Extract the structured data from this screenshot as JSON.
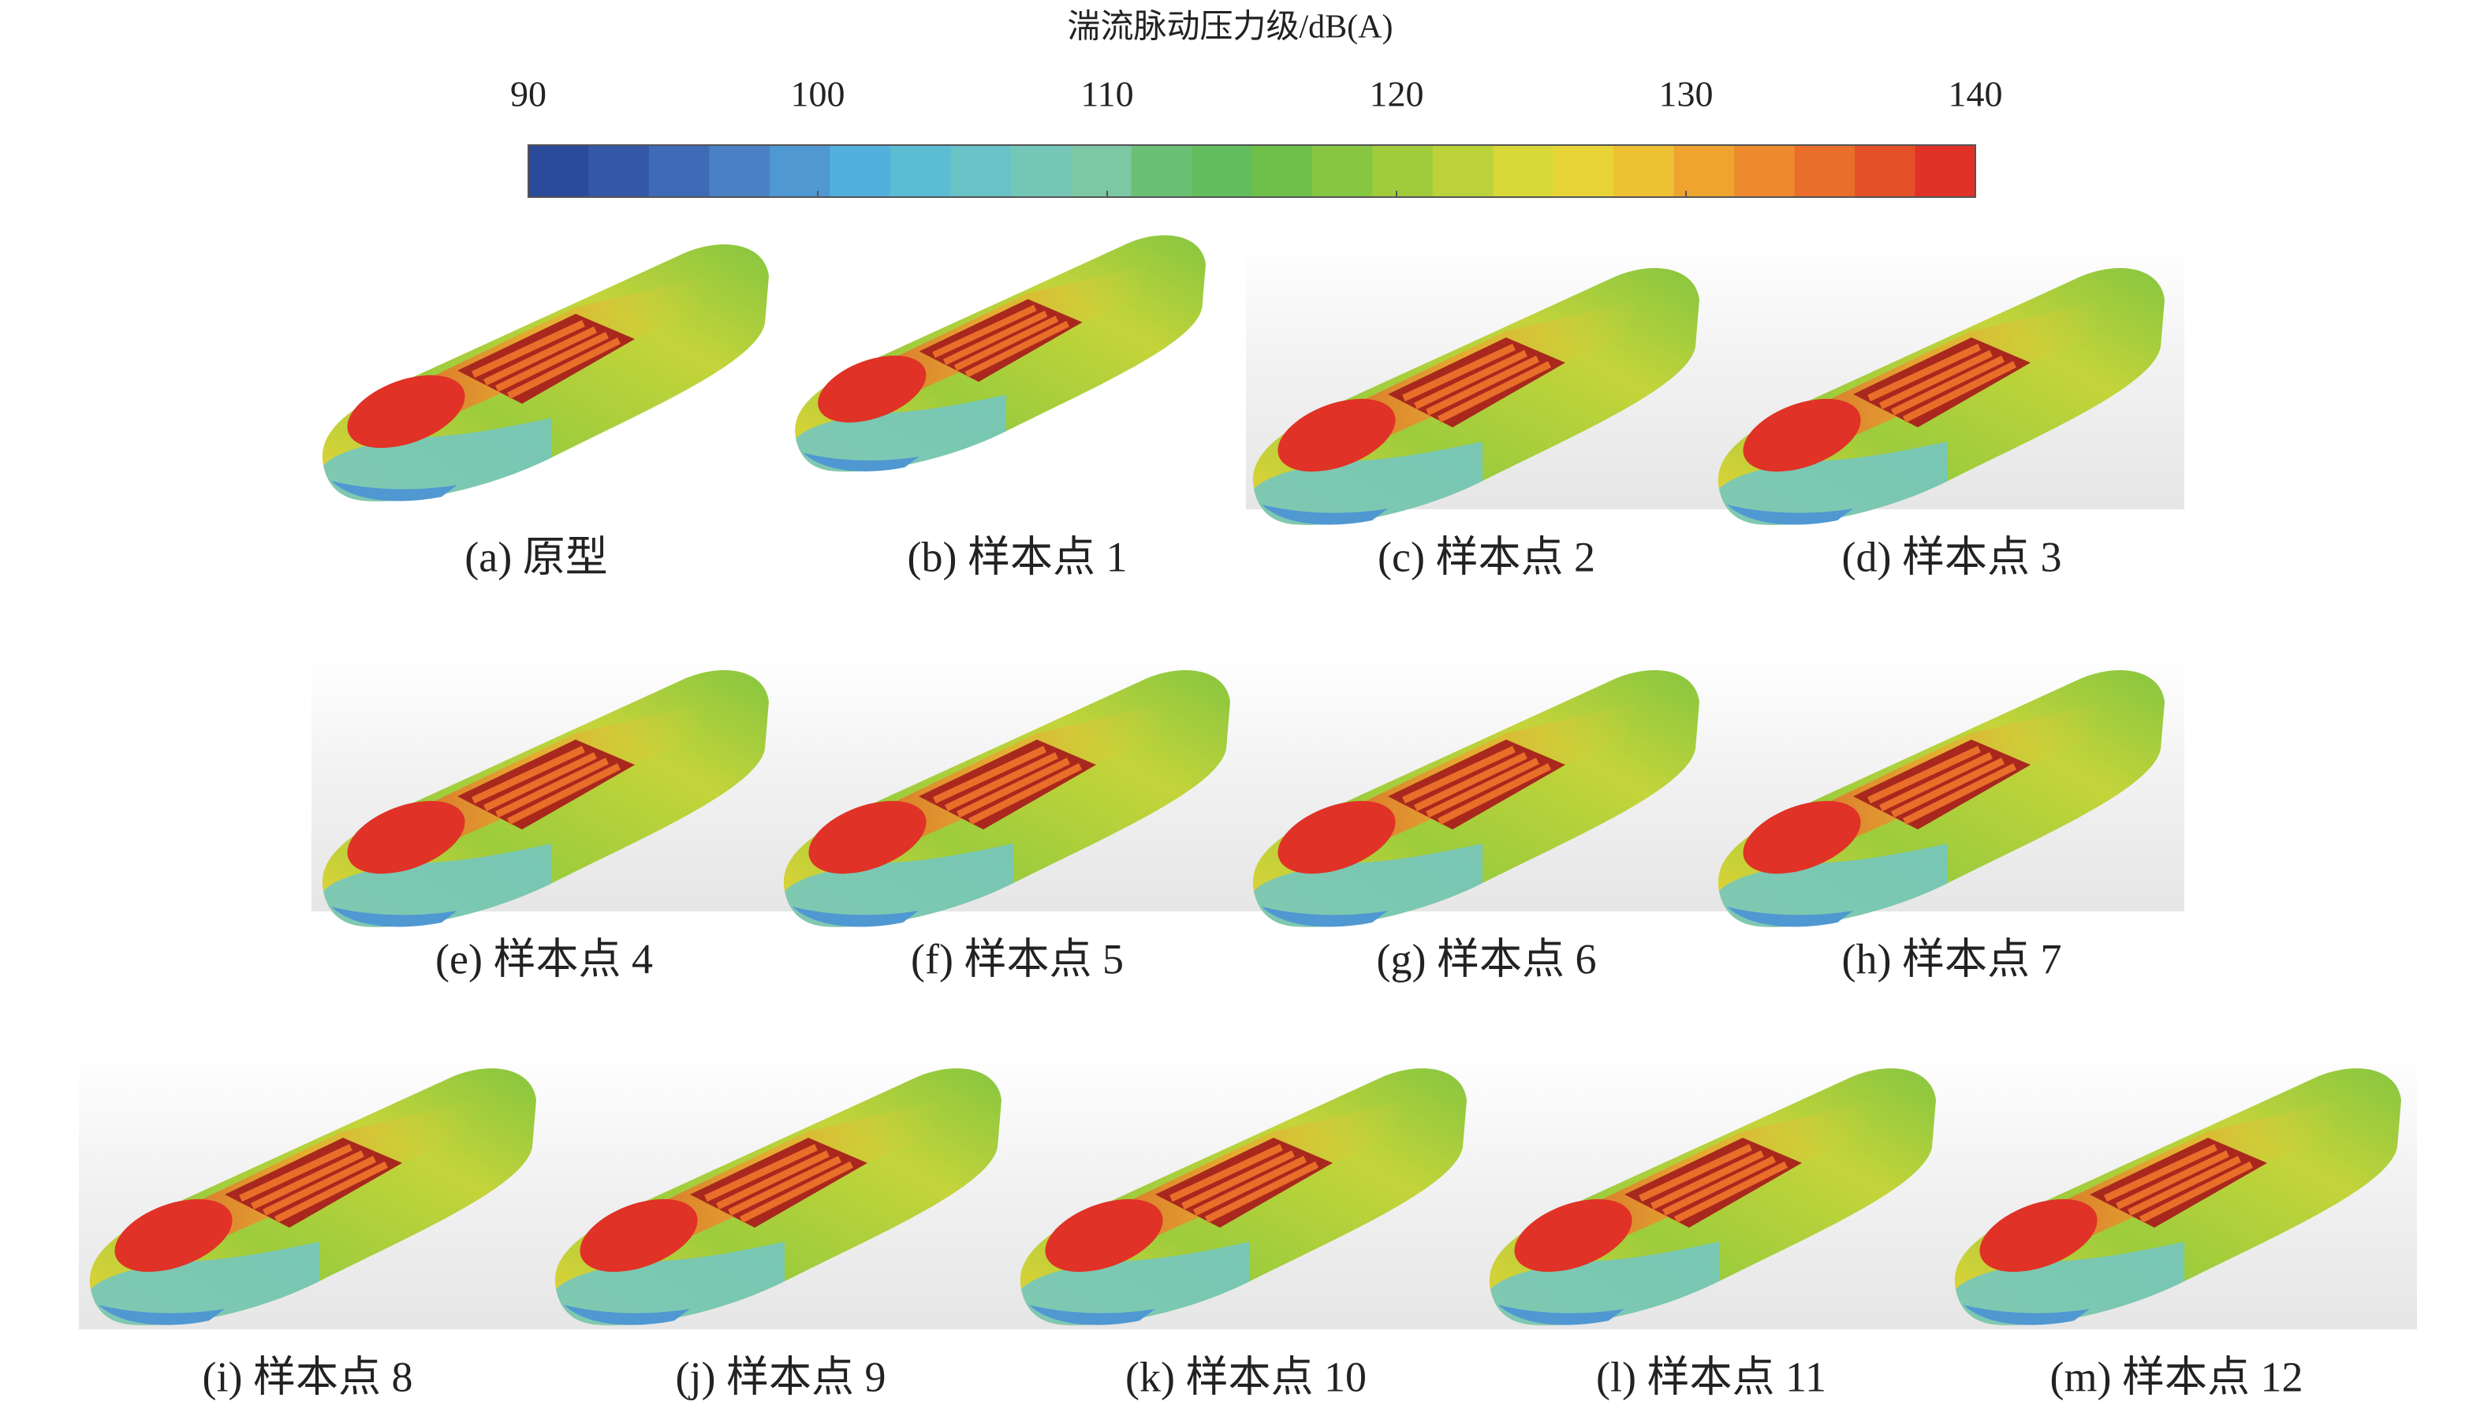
{
  "colorbar": {
    "title": "湍流脉动压力级/dB(A)",
    "lim": [
      90,
      140
    ],
    "ticks": [
      90,
      100,
      110,
      120,
      130,
      140
    ],
    "colors": [
      "#2c4a9a",
      "#3557a8",
      "#3f6ab6",
      "#4a80c4",
      "#4f98d2",
      "#52b0dc",
      "#5bbcd4",
      "#68c2c6",
      "#74c6b6",
      "#7cc8a4",
      "#6cc076",
      "#62bd5c",
      "#6ec049",
      "#86c640",
      "#a0cc3c",
      "#bcd23a",
      "#d8d838",
      "#e8d436",
      "#eec033",
      "#eea42f",
      "#ec8a2d",
      "#e86e2a",
      "#e45028",
      "#e03226"
    ]
  },
  "panels": [
    {
      "label": "(a) 原型"
    },
    {
      "label": "(b) 样本点 1"
    },
    {
      "label": "(c) 样本点 2"
    },
    {
      "label": "(d) 样本点 3"
    },
    {
      "label": "(e) 样本点 4"
    },
    {
      "label": "(f) 样本点 5"
    },
    {
      "label": "(g) 样本点 6"
    },
    {
      "label": "(h) 样本点 7"
    },
    {
      "label": "(i) 样本点 8"
    },
    {
      "label": "(j) 样本点 9"
    },
    {
      "label": "(k) 样本点 10"
    },
    {
      "label": "(l) 样本点 11"
    },
    {
      "label": "(m) 样本点 12"
    }
  ]
}
